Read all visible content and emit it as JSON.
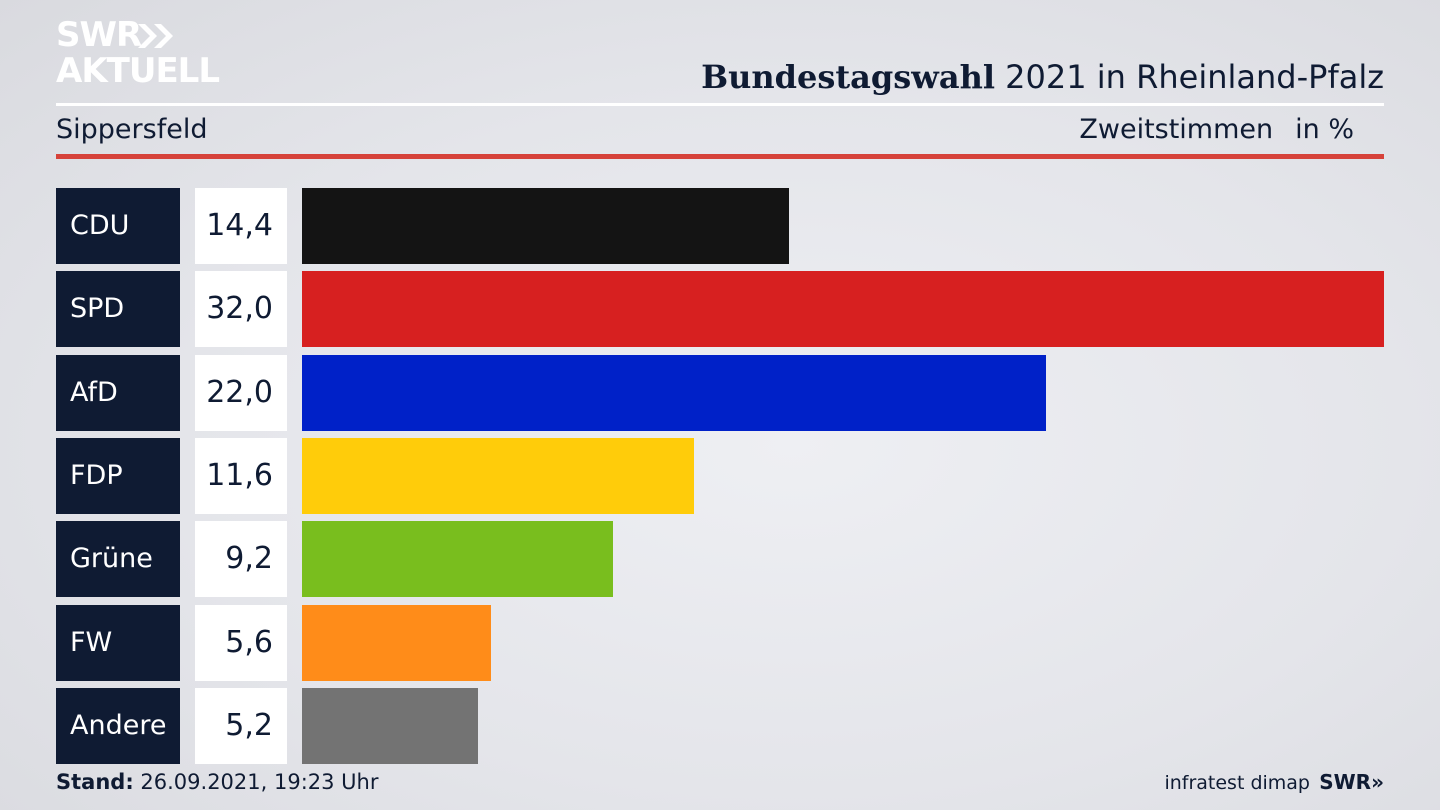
{
  "brand": {
    "line1": "SWR",
    "line2": "AKTUELL"
  },
  "header": {
    "title_bold": "Bundestagswahl",
    "title_rest": " 2021 in Rheinland-Pfalz",
    "location": "Sippersfeld",
    "measure": "Zweitstimmen",
    "unit": "in %"
  },
  "chart_data": {
    "type": "bar",
    "orientation": "horizontal",
    "categories": [
      "CDU",
      "SPD",
      "AfD",
      "FDP",
      "Grüne",
      "FW",
      "Andere"
    ],
    "values": [
      14.4,
      32.0,
      22.0,
      11.6,
      9.2,
      5.6,
      5.2
    ],
    "labels": [
      "14,4",
      "32,0",
      "22,0",
      "11,6",
      "9,2",
      "5,6",
      "5,2"
    ],
    "colors": [
      "#141414",
      "#d72020",
      "#0021c8",
      "#ffcc0a",
      "#79be1e",
      "#ff8c19",
      "#737373"
    ],
    "xlim": [
      0,
      32.0
    ]
  },
  "footer": {
    "stand_label": "Stand:",
    "stand_value": " 26.09.2021, 19:23 Uhr",
    "source": "infratest dimap",
    "brand": "SWR"
  }
}
